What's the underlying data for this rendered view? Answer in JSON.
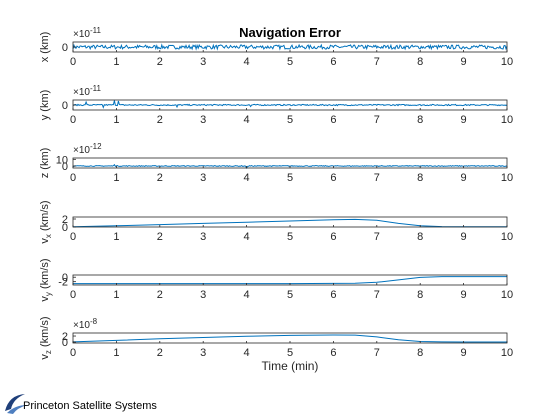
{
  "colors": {
    "line": "#0072BD",
    "axis": "#262626",
    "background": "#ffffff",
    "logo": "#1f3f7a"
  },
  "chart_data": [
    {
      "type": "line",
      "title": "Navigation Error",
      "ylabel": "x (km)",
      "xlabel": "",
      "exponent_label": "×10",
      "exponent": "-11",
      "xlim": [
        0,
        10
      ],
      "ylim": [
        -1.5,
        1.5
      ],
      "xticks": [
        "0",
        "1",
        "2",
        "3",
        "4",
        "5",
        "6",
        "7",
        "8",
        "9",
        "10"
      ],
      "yticks": [
        "0"
      ],
      "noise": {
        "amp": 0.6,
        "spikes": []
      }
    },
    {
      "type": "line",
      "title": "",
      "ylabel": "y (km)",
      "xlabel": "",
      "exponent_label": "×10",
      "exponent": "-11",
      "xlim": [
        0,
        10
      ],
      "ylim": [
        -2,
        2
      ],
      "xticks": [
        "0",
        "1",
        "2",
        "3",
        "4",
        "5",
        "6",
        "7",
        "8",
        "9",
        "10"
      ],
      "yticks": [
        "0"
      ],
      "noise": {
        "amp": 0.25,
        "spikes": [
          [
            0.3,
            1.2
          ],
          [
            0.7,
            1.6
          ],
          [
            0.95,
            1.8
          ],
          [
            1.05,
            1.6
          ],
          [
            2.4,
            -0.8
          ],
          [
            4.1,
            1.0
          ]
        ]
      }
    },
    {
      "type": "line",
      "title": "",
      "ylabel": "z (km)",
      "xlabel": "",
      "exponent_label": "×10",
      "exponent": "-12",
      "xlim": [
        0,
        10
      ],
      "ylim": [
        -3,
        12
      ],
      "xticks": [
        "0",
        "1",
        "2",
        "3",
        "4",
        "5",
        "6",
        "7",
        "8",
        "9",
        "10"
      ],
      "yticks": [
        "0",
        "10"
      ],
      "noise": {
        "amp": 0.6,
        "spikes": [
          [
            4.0,
            11.0
          ],
          [
            0.95,
            2.0
          ]
        ]
      }
    },
    {
      "type": "line",
      "title": "",
      "ylabel": "v",
      "ylabel_sub": "x",
      "ylabel_unit": " (km/s)",
      "xlabel": "",
      "exponent_label": "",
      "exponent": "",
      "xlim": [
        0,
        10
      ],
      "ylim": [
        0,
        2.5
      ],
      "xticks": [
        "0",
        "1",
        "2",
        "3",
        "4",
        "5",
        "6",
        "7",
        "8",
        "9",
        "10"
      ],
      "yticks": [
        "0",
        "2"
      ],
      "x": [
        0,
        1,
        2,
        3,
        4,
        5,
        6,
        6.5,
        7,
        7.5,
        8,
        8.5,
        9,
        10
      ],
      "y": [
        0.05,
        0.3,
        0.6,
        0.9,
        1.2,
        1.5,
        1.8,
        1.9,
        1.7,
        0.9,
        0.3,
        0.1,
        0.05,
        0.05
      ]
    },
    {
      "type": "line",
      "title": "",
      "ylabel": "v",
      "ylabel_sub": "y",
      "ylabel_unit": " (km/s)",
      "xlabel": "",
      "exponent_label": "",
      "exponent": "",
      "xlim": [
        0,
        10
      ],
      "ylim": [
        -3.5,
        1
      ],
      "xticks": [
        "0",
        "1",
        "2",
        "3",
        "4",
        "5",
        "6",
        "7",
        "8",
        "9",
        "10"
      ],
      "yticks": [
        "0",
        "-2"
      ],
      "x": [
        0,
        1,
        2,
        3,
        4,
        5,
        6,
        6.5,
        7,
        7.5,
        8,
        8.5,
        9,
        10
      ],
      "y": [
        -2.85,
        -2.85,
        -2.85,
        -2.85,
        -2.85,
        -2.85,
        -2.8,
        -2.7,
        -2.3,
        -1.2,
        -0.1,
        0.3,
        0.3,
        0.3
      ]
    },
    {
      "type": "line",
      "title": "",
      "ylabel": "v",
      "ylabel_sub": "z",
      "ylabel_unit": " (km/s)",
      "xlabel": "Time (min)",
      "exponent_label": "×10",
      "exponent": "-8",
      "xlim": [
        0,
        10
      ],
      "ylim": [
        -0.3,
        3
      ],
      "xticks": [
        "0",
        "1",
        "2",
        "3",
        "4",
        "5",
        "6",
        "7",
        "8",
        "9",
        "10"
      ],
      "yticks": [
        "0",
        "2"
      ],
      "x": [
        0,
        1,
        2,
        3,
        4,
        5,
        6,
        6.5,
        7,
        7.5,
        8,
        8.5,
        9,
        10
      ],
      "y": [
        0.05,
        0.55,
        1.1,
        1.5,
        1.9,
        2.2,
        2.35,
        2.3,
        1.7,
        0.8,
        0.2,
        0.05,
        0.02,
        0.02
      ]
    }
  ],
  "logo": {
    "text": "Princeton Satellite Systems",
    "icon": "pss-swoosh-icon"
  }
}
